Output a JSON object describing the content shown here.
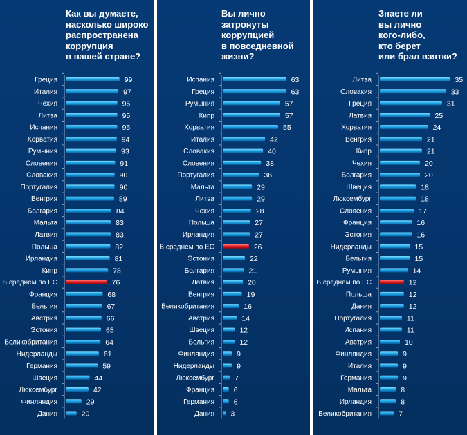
{
  "chart_data": [
    {
      "type": "bar",
      "orientation": "horizontal",
      "title": "Как вы думаете,\nнасколько широко\nраспространена\nкоррупция\nв вашей стране?",
      "categories": [
        "Греция",
        "Италия",
        "Чехия",
        "Литва",
        "Испания",
        "Хорватия",
        "Румыния",
        "Словения",
        "Словакия",
        "Португалия",
        "Венгрия",
        "Болгария",
        "Мальта",
        "Латвия",
        "Польша",
        "Ирландия",
        "Кипр",
        "В среднем  по ЕС",
        "Франция",
        "Бельгия",
        "Австрия",
        "Эстония",
        "Великобритания",
        "Нидерланды",
        "Германия",
        "Швеция",
        "Люксембург",
        "Финляндия",
        "Дания"
      ],
      "values": [
        99,
        97,
        95,
        95,
        95,
        94,
        93,
        91,
        90,
        90,
        89,
        84,
        83,
        83,
        82,
        81,
        78,
        76,
        68,
        67,
        66,
        65,
        64,
        61,
        59,
        44,
        42,
        29,
        20
      ],
      "highlight_index": 17,
      "xlim": [
        0,
        100
      ],
      "grid": false,
      "legend": "none"
    },
    {
      "type": "bar",
      "orientation": "horizontal",
      "title": "Вы лично\nзатронуты\nкоррупцией\nв повседневной\nжизни?",
      "categories": [
        "Испания",
        "Греция",
        "Румыния",
        "Кипр",
        "Хорватия",
        "Италия",
        "Словакия",
        "Словения",
        "Португалия",
        "Мальта",
        "Литва",
        "Чехия",
        "Польша",
        "Ирландия",
        "В среднем  по ЕС",
        "Эстония",
        "Болгария",
        "Латвия",
        "Венгрия",
        "Великобритания",
        "Австрия",
        "Швеция",
        "Бельгия",
        "Финляндия",
        "Нидерланды",
        "Люксембург",
        "Франция",
        "Германия",
        "Дания"
      ],
      "values": [
        63,
        63,
        57,
        57,
        55,
        42,
        40,
        38,
        36,
        29,
        29,
        28,
        27,
        27,
        26,
        22,
        21,
        20,
        19,
        16,
        14,
        12,
        12,
        9,
        9,
        7,
        6,
        6,
        3
      ],
      "highlight_index": 14,
      "xlim": [
        0,
        65
      ],
      "grid": false,
      "legend": "none"
    },
    {
      "type": "bar",
      "orientation": "horizontal",
      "title": "Знаете ли\nвы лично\nкого-либо,\nкто берет\nили брал взятки?",
      "categories": [
        "Литва",
        "Словакия",
        "Греция",
        "Латвия",
        "Хорватия",
        "Венгрия",
        "Кипр",
        "Чехия",
        "Болгария",
        "Швеция",
        "Люксембург",
        "Словения",
        "Франция",
        "Эстония",
        "Нидерланды",
        "Бельгия",
        "Румыния",
        "В среднем  по ЕС",
        "Польша",
        "Дания",
        "Португалия",
        "Испания",
        "Австрия",
        "Финляндия",
        "Италия",
        "Германия",
        "Мальта",
        "Ирландия",
        "Великобритания"
      ],
      "values": [
        35,
        33,
        31,
        25,
        24,
        21,
        21,
        20,
        20,
        18,
        18,
        17,
        16,
        16,
        15,
        15,
        14,
        12,
        12,
        12,
        11,
        11,
        10,
        9,
        9,
        9,
        8,
        8,
        7
      ],
      "highlight_index": 17,
      "xlim": [
        0,
        35
      ],
      "grid": false,
      "legend": "none"
    }
  ],
  "colors": {
    "background": "#05346b",
    "bar": "#1ea7e8",
    "bar_highlight": "#e8161c",
    "text": "#ffffff"
  }
}
